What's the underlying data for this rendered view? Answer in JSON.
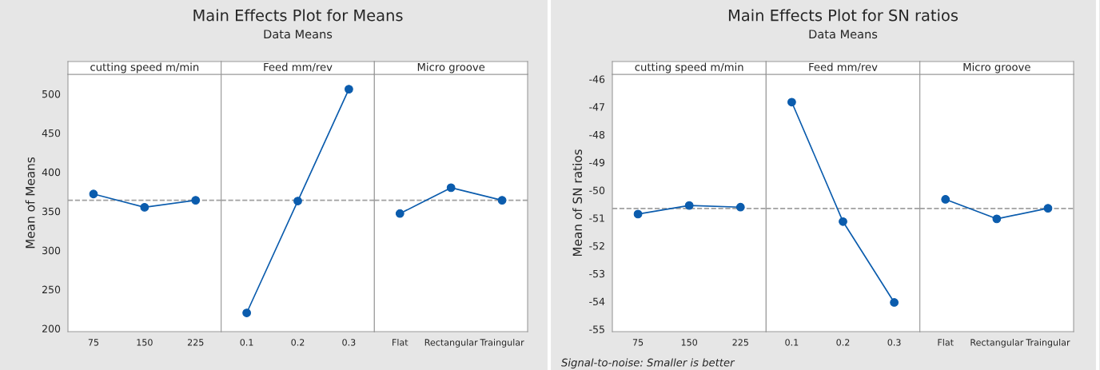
{
  "chart_data": [
    {
      "type": "other",
      "title": "Main Effects Plot for Means",
      "subtitle": "Data Means"
    },
    {
      "type": "line",
      "title": "cutting speed m/min",
      "ylabel": "Mean of Means",
      "categories": [
        "75",
        "150",
        "225"
      ],
      "values": [
        372,
        355,
        364
      ],
      "color": "#0b5cad",
      "marker": "circle",
      "ylim": [
        196,
        525
      ],
      "yticks": [
        200,
        250,
        300,
        350,
        400,
        450,
        500
      ],
      "ref_lines": [
        {
          "axis": "y",
          "value": 364,
          "color": "#a0a0a0",
          "line_style": "dashed"
        }
      ]
    },
    {
      "type": "line",
      "title": "Feed mm/rev",
      "categories": [
        "0.1",
        "0.2",
        "0.3"
      ],
      "values": [
        220,
        363,
        506
      ],
      "color": "#0b5cad",
      "marker": "circle",
      "ylim": [
        196,
        525
      ],
      "yticks": [
        200,
        250,
        300,
        350,
        400,
        450,
        500
      ],
      "tick_labels": "x",
      "ref_lines": [
        {
          "axis": "y",
          "value": 364,
          "color": "#a0a0a0",
          "line_style": "dashed"
        }
      ]
    },
    {
      "type": "line",
      "title": "Micro groove",
      "categories": [
        "Flat",
        "Rectangular",
        "Traingular"
      ],
      "values": [
        347,
        380,
        364
      ],
      "color": "#0b5cad",
      "marker": "circle",
      "ylim": [
        196,
        525
      ],
      "yticks": [
        200,
        250,
        300,
        350,
        400,
        450,
        500
      ],
      "tick_labels": "x",
      "ref_lines": [
        {
          "axis": "y",
          "value": 364,
          "color": "#a0a0a0",
          "line_style": "dashed"
        }
      ]
    },
    {
      "type": "other",
      "title": "Main Effects Plot for SN ratios",
      "subtitle": "Data Means",
      "annotations": [
        "Signal-to-noise: Smaller is better"
      ]
    },
    {
      "type": "line",
      "title": "cutting speed m/min",
      "ylabel": "Mean of SN ratios",
      "categories": [
        "75",
        "150",
        "225"
      ],
      "values": [
        -50.86,
        -50.55,
        -50.61
      ],
      "color": "#0b5cad",
      "marker": "circle",
      "ylim": [
        -55.09,
        -45.83
      ],
      "yticks": [
        -55,
        -54,
        -53,
        -52,
        -51,
        -50,
        -49,
        -48,
        -47,
        -46
      ],
      "ref_lines": [
        {
          "axis": "y",
          "value": -50.66,
          "color": "#a0a0a0",
          "line_style": "dashed"
        }
      ]
    },
    {
      "type": "line",
      "title": "Feed mm/rev",
      "categories": [
        "0.1",
        "0.2",
        "0.3"
      ],
      "values": [
        -46.83,
        -51.13,
        -54.04
      ],
      "color": "#0b5cad",
      "marker": "circle",
      "ylim": [
        -55.09,
        -45.83
      ],
      "yticks": [
        -55,
        -54,
        -53,
        -52,
        -51,
        -50,
        -49,
        -48,
        -47,
        -46
      ],
      "tick_labels": "x",
      "ref_lines": [
        {
          "axis": "y",
          "value": -50.66,
          "color": "#a0a0a0",
          "line_style": "dashed"
        }
      ]
    },
    {
      "type": "line",
      "title": "Micro groove",
      "categories": [
        "Flat",
        "Rectangular",
        "Traingular"
      ],
      "values": [
        -50.33,
        -51.03,
        -50.65
      ],
      "color": "#0b5cad",
      "marker": "circle",
      "ylim": [
        -55.09,
        -45.83
      ],
      "yticks": [
        -55,
        -54,
        -53,
        -52,
        -51,
        -50,
        -49,
        -48,
        -47,
        -46
      ],
      "tick_labels": "x",
      "ref_lines": [
        {
          "axis": "y",
          "value": -50.66,
          "color": "#a0a0a0",
          "line_style": "dashed"
        }
      ]
    }
  ]
}
